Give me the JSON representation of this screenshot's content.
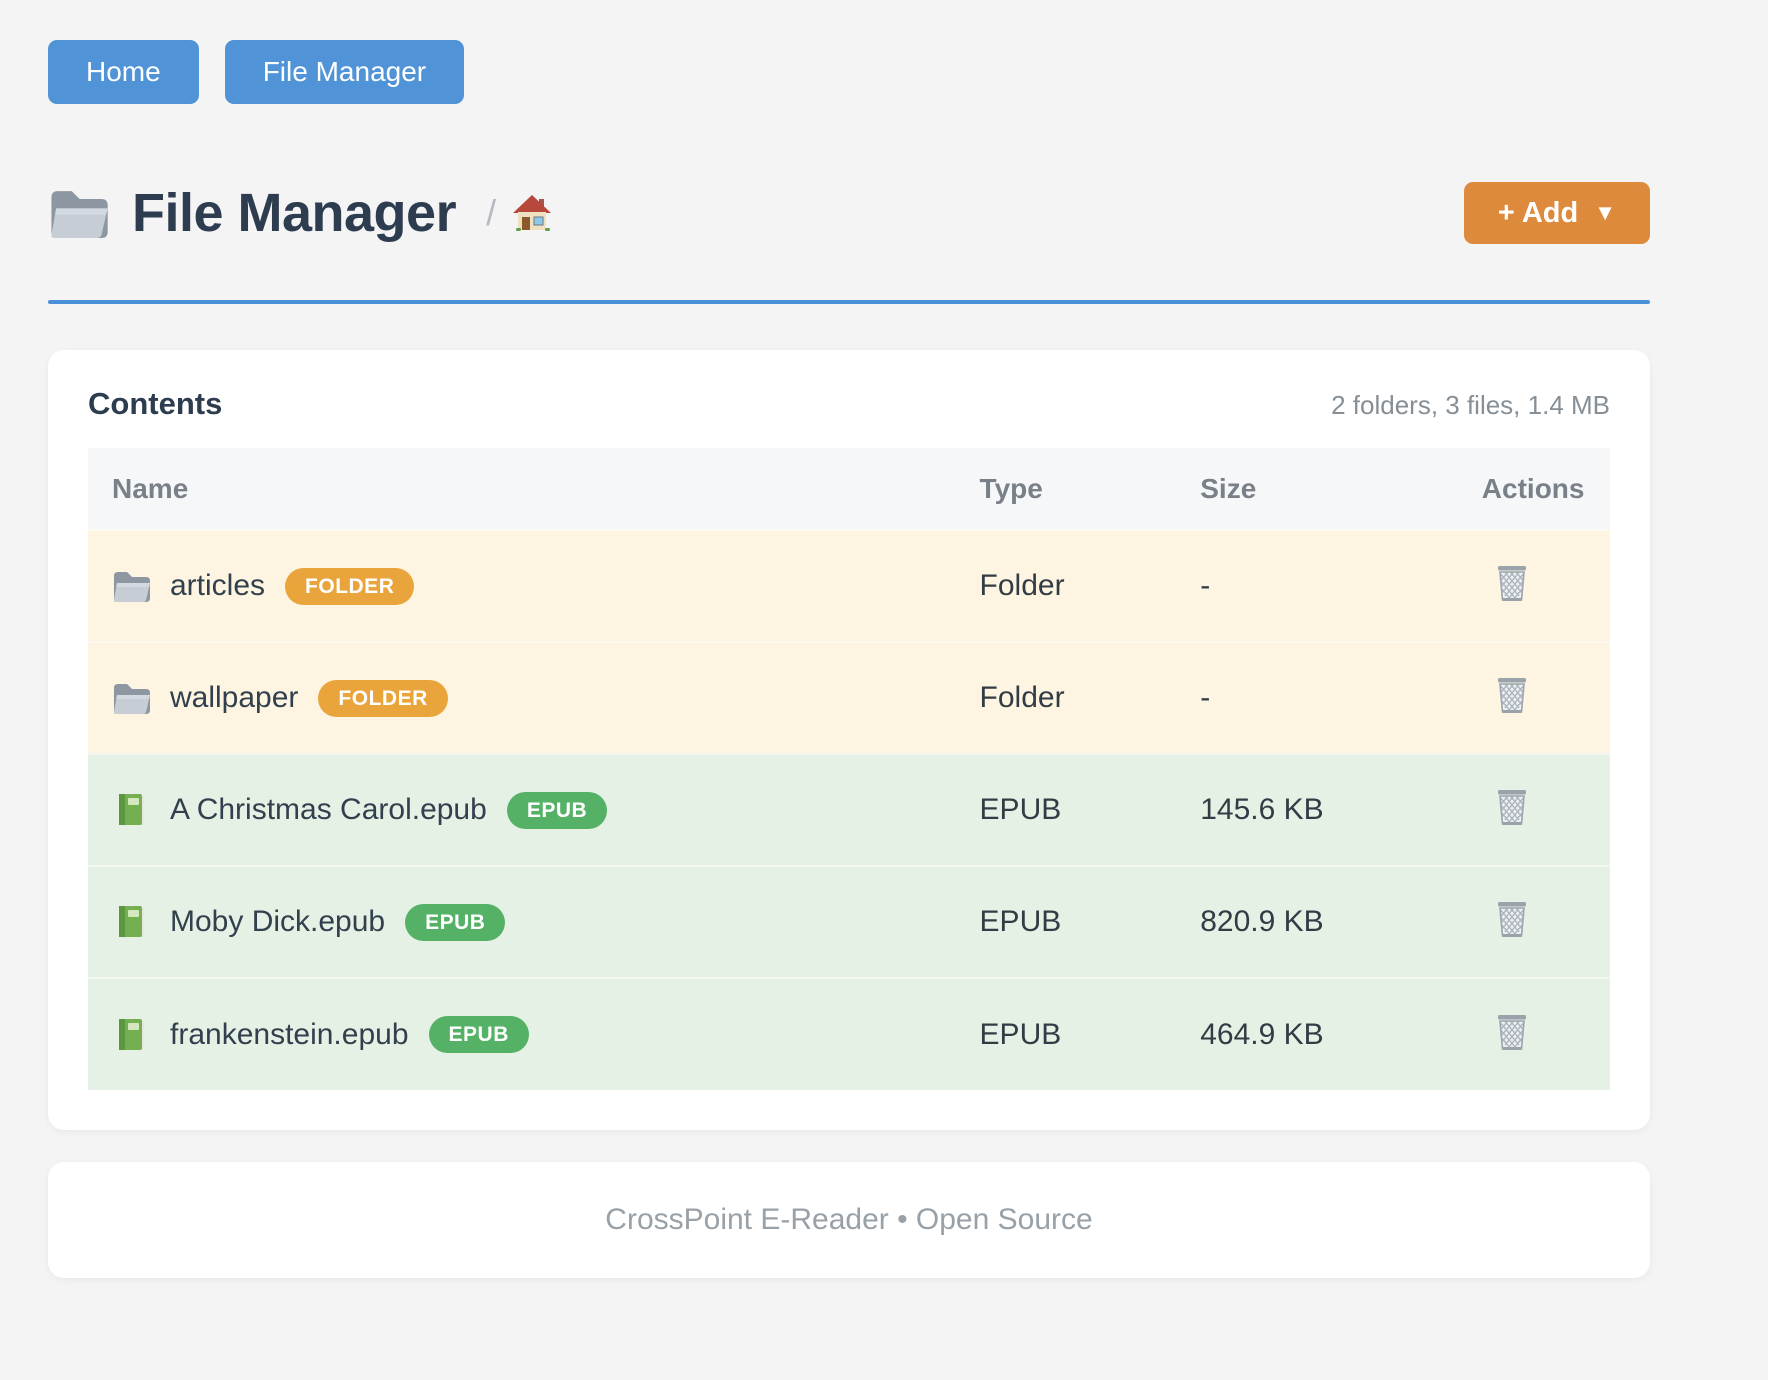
{
  "nav": {
    "buttons": [
      {
        "label": "Home"
      },
      {
        "label": "File Manager"
      }
    ]
  },
  "header": {
    "title": "File Manager",
    "breadcrumb_separator": "/",
    "add_button": {
      "label": "+ Add",
      "caret": "▼"
    }
  },
  "contents": {
    "heading": "Contents",
    "summary": "2 folders, 3 files, 1.4 MB",
    "columns": [
      "Name",
      "Type",
      "Size",
      "Actions"
    ],
    "rows": [
      {
        "name": "articles",
        "badge": "FOLDER",
        "type": "Folder",
        "size": "-",
        "kind": "folder",
        "icon": "folder-icon"
      },
      {
        "name": "wallpaper",
        "badge": "FOLDER",
        "type": "Folder",
        "size": "-",
        "kind": "folder",
        "icon": "folder-icon"
      },
      {
        "name": "A Christmas Carol.epub",
        "badge": "EPUB",
        "type": "EPUB",
        "size": "145.6 KB",
        "kind": "epub",
        "icon": "book-icon"
      },
      {
        "name": "Moby Dick.epub",
        "badge": "EPUB",
        "type": "EPUB",
        "size": "820.9 KB",
        "kind": "epub",
        "icon": "book-icon"
      },
      {
        "name": "frankenstein.epub",
        "badge": "EPUB",
        "type": "EPUB",
        "size": "464.9 KB",
        "kind": "epub",
        "icon": "book-icon"
      }
    ]
  },
  "footer": {
    "text": "CrossPoint E-Reader • Open Source"
  },
  "colors": {
    "primary_blue": "#5094d7",
    "divider_blue": "#4a90d8",
    "accent_orange": "#dd8a3c",
    "badge_orange": "#eaa43c",
    "badge_green": "#55b166",
    "folder_row_bg": "#fdf5e1",
    "epub_row_bg": "#e6f1e6",
    "title_text": "#2d3c4e"
  }
}
